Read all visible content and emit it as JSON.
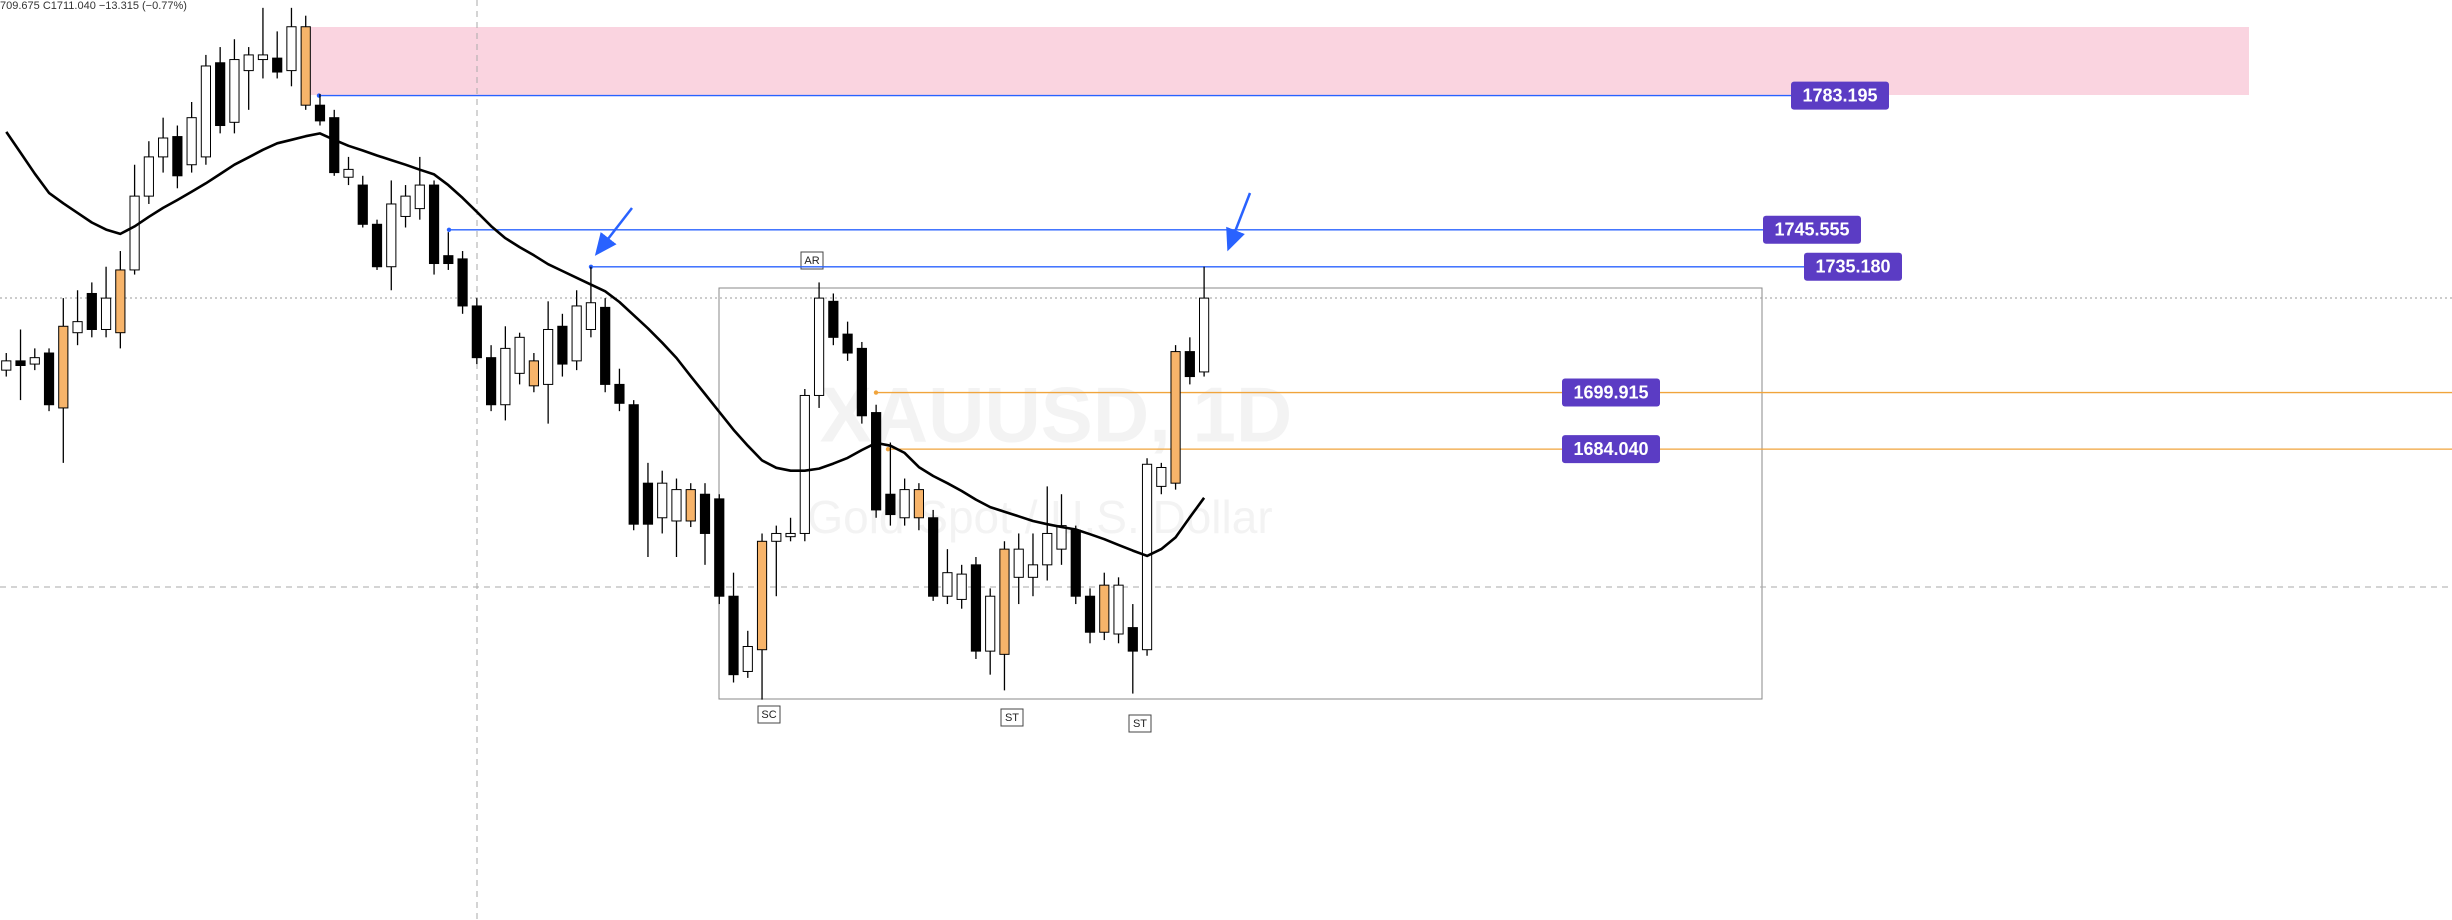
{
  "chart_data": {
    "type": "candlestick",
    "legend_text": "709.675 C1711.040 −13.315 (−0.77%)",
    "watermark": {
      "symbol": "XAUUSD, 1D",
      "description": "Gold Spot / U.S. Dollar"
    },
    "ylim": [
      1552,
      1810
    ],
    "open": [
      1706.2,
      1708.8,
      1707.9,
      1711.0,
      1695.6,
      1716.7,
      1727.7,
      1717.6,
      1716.7,
      1734.3,
      1755.0,
      1766.0,
      1771.7,
      1763.8,
      1766.0,
      1792.4,
      1775.7,
      1790.2,
      1793.3,
      1793.7,
      1790.2,
      1802.5,
      1780.5,
      1777.0,
      1760.3,
      1758.1,
      1747.1,
      1735.2,
      1749.3,
      1751.5,
      1758.1,
      1738.3,
      1737.4,
      1724.2,
      1709.7,
      1696.5,
      1705.3,
      1708.8,
      1702.2,
      1718.5,
      1708.8,
      1717.6,
      1723.8,
      1702.2,
      1696.5,
      1674.5,
      1664.8,
      1663.9,
      1663.9,
      1671.4,
      1670.1,
      1642.8,
      1621.7,
      1627.8,
      1658.2,
      1659.5,
      1660.4,
      1699.1,
      1725.5,
      1716.3,
      1712.3,
      1694.3,
      1671.4,
      1664.8,
      1664.8,
      1664.8,
      1642.8,
      1641.9,
      1651.6,
      1627.4,
      1626.5,
      1648.1,
      1648.1,
      1651.6,
      1656.0,
      1661.3,
      1642.8,
      1632.7,
      1632.2,
      1634.0,
      1627.8,
      1673.6,
      1674.5,
      1711.4,
      1705.7
    ],
    "high": [
      1711.0,
      1717.6,
      1712.3,
      1712.3,
      1726.4,
      1728.6,
      1730.8,
      1735.2,
      1739.6,
      1763.8,
      1770.4,
      1777.0,
      1774.8,
      1781.4,
      1794.6,
      1796.8,
      1799.0,
      1796.8,
      1807.8,
      1801.2,
      1807.8,
      1805.6,
      1783.6,
      1779.2,
      1766.0,
      1760.7,
      1748.4,
      1759.4,
      1758.1,
      1766.0,
      1759.4,
      1744.9,
      1739.6,
      1726.4,
      1713.2,
      1718.5,
      1716.7,
      1711.0,
      1725.5,
      1722.0,
      1728.6,
      1735.2,
      1726.4,
      1706.6,
      1697.8,
      1680.2,
      1678.0,
      1675.8,
      1674.5,
      1674.5,
      1671.4,
      1649.4,
      1633.1,
      1660.4,
      1662.6,
      1664.8,
      1700.9,
      1730.8,
      1727.7,
      1719.8,
      1714.1,
      1696.5,
      1685.9,
      1675.8,
      1674.5,
      1667.0,
      1656.0,
      1651.6,
      1653.8,
      1645.0,
      1658.2,
      1660.4,
      1660.4,
      1673.6,
      1671.4,
      1662.6,
      1645.0,
      1649.4,
      1648.1,
      1640.6,
      1681.5,
      1680.2,
      1713.2,
      1715.4,
      1735.2
    ],
    "low": [
      1704.4,
      1697.8,
      1706.2,
      1694.7,
      1680.2,
      1713.2,
      1715.4,
      1715.4,
      1712.3,
      1733.0,
      1752.8,
      1761.6,
      1757.2,
      1761.6,
      1763.8,
      1772.6,
      1772.6,
      1779.2,
      1788.0,
      1788.0,
      1785.8,
      1779.2,
      1774.8,
      1760.7,
      1758.1,
      1746.2,
      1734.3,
      1728.6,
      1746.2,
      1748.4,
      1733.0,
      1734.3,
      1722.0,
      1707.9,
      1694.7,
      1692.1,
      1702.2,
      1700.0,
      1691.2,
      1704.4,
      1706.2,
      1715.4,
      1700.0,
      1694.7,
      1661.3,
      1653.8,
      1660.4,
      1653.8,
      1662.2,
      1651.6,
      1640.6,
      1618.6,
      1619.9,
      1613.8,
      1642.8,
      1658.2,
      1658.2,
      1695.6,
      1713.2,
      1708.8,
      1691.2,
      1664.8,
      1662.6,
      1662.6,
      1661.3,
      1641.5,
      1640.6,
      1639.3,
      1625.2,
      1620.8,
      1616.4,
      1640.6,
      1642.8,
      1647.2,
      1651.6,
      1640.6,
      1629.6,
      1630.5,
      1629.6,
      1615.5,
      1626.1,
      1671.4,
      1672.7,
      1702.2,
      1704.4
    ],
    "close": [
      1708.8,
      1707.5,
      1709.7,
      1696.5,
      1718.5,
      1719.8,
      1717.6,
      1726.4,
      1734.3,
      1755.0,
      1766.0,
      1771.3,
      1760.7,
      1777.0,
      1791.5,
      1774.8,
      1793.3,
      1794.6,
      1794.6,
      1789.8,
      1802.5,
      1780.5,
      1776.1,
      1761.6,
      1762.5,
      1747.1,
      1735.2,
      1752.8,
      1755.0,
      1758.1,
      1736.1,
      1736.1,
      1724.2,
      1709.7,
      1696.5,
      1712.3,
      1715.4,
      1701.8,
      1717.6,
      1707.9,
      1724.2,
      1725.1,
      1702.2,
      1696.9,
      1663.0,
      1663.0,
      1674.5,
      1672.7,
      1672.7,
      1660.4,
      1642.8,
      1620.8,
      1628.7,
      1658.2,
      1660.4,
      1660.4,
      1699.1,
      1726.4,
      1715.4,
      1711.0,
      1693.4,
      1667.0,
      1665.7,
      1672.7,
      1672.7,
      1642.8,
      1649.4,
      1649.0,
      1627.4,
      1642.8,
      1656.0,
      1656.0,
      1651.6,
      1660.4,
      1662.6,
      1642.8,
      1632.7,
      1645.9,
      1645.9,
      1627.4,
      1679.8,
      1678.9,
      1711.4,
      1704.4,
      1726.4
    ],
    "colors": [
      "#ffffff",
      "#000000",
      "#ffffff",
      "#000000",
      "#f7b46a",
      "#ffffff",
      "#000000",
      "#ffffff",
      "#f7b46a",
      "#ffffff",
      "#ffffff",
      "#ffffff",
      "#000000",
      "#ffffff",
      "#ffffff",
      "#000000",
      "#ffffff",
      "#ffffff",
      "#ffffff",
      "#000000",
      "#ffffff",
      "#f7b46a",
      "#000000",
      "#000000",
      "#ffffff",
      "#000000",
      "#000000",
      "#ffffff",
      "#ffffff",
      "#ffffff",
      "#000000",
      "#000000",
      "#000000",
      "#000000",
      "#000000",
      "#ffffff",
      "#ffffff",
      "#f7b46a",
      "#ffffff",
      "#000000",
      "#ffffff",
      "#ffffff",
      "#000000",
      "#000000",
      "#000000",
      "#000000",
      "#ffffff",
      "#ffffff",
      "#f7b46a",
      "#000000",
      "#000000",
      "#000000",
      "#ffffff",
      "#f7b46a",
      "#ffffff",
      "#ffffff",
      "#ffffff",
      "#ffffff",
      "#000000",
      "#000000",
      "#000000",
      "#000000",
      "#000000",
      "#ffffff",
      "#f7b46a",
      "#000000",
      "#ffffff",
      "#ffffff",
      "#000000",
      "#ffffff",
      "#f7b46a",
      "#ffffff",
      "#ffffff",
      "#ffffff",
      "#ffffff",
      "#000000",
      "#000000",
      "#f7b46a",
      "#ffffff",
      "#000000",
      "#ffffff",
      "#ffffff",
      "#f7b46a",
      "#000000",
      "#ffffff"
    ],
    "moving_average": {
      "color": "#000000",
      "values": [
        1773.0,
        1767.2,
        1761.3,
        1755.9,
        1753.0,
        1750.3,
        1747.6,
        1745.6,
        1744.4,
        1746.5,
        1749.2,
        1751.7,
        1753.9,
        1756.2,
        1758.6,
        1761.2,
        1763.8,
        1765.9,
        1768.0,
        1769.8,
        1770.8,
        1771.8,
        1772.6,
        1770.8,
        1769.1,
        1767.8,
        1766.4,
        1765.1,
        1763.8,
        1762.4,
        1761.1,
        1758.1,
        1754.5,
        1750.6,
        1746.6,
        1743.2,
        1740.7,
        1738.4,
        1735.9,
        1734.0,
        1732.1,
        1730.2,
        1728.3,
        1725.3,
        1721.6,
        1717.9,
        1713.9,
        1709.6,
        1704.5,
        1699.5,
        1694.5,
        1689.5,
        1685.0,
        1680.9,
        1678.8,
        1678.0,
        1678.0,
        1678.6,
        1680.0,
        1681.6,
        1683.8,
        1685.8,
        1685.0,
        1683.0,
        1679.0,
        1676.5,
        1674.5,
        1672.3,
        1669.9,
        1667.8,
        1666.5,
        1665.2,
        1663.9,
        1663.0,
        1662.2,
        1661.5,
        1660.2,
        1658.8,
        1657.2,
        1655.6,
        1654.1,
        1656.0,
        1659.3,
        1664.9,
        1670.4
      ]
    },
    "levels": [
      {
        "value": 1783.195,
        "label": "1783.195",
        "color": "#2962ff"
      },
      {
        "value": 1745.555,
        "label": "1745.555",
        "color": "#2962ff"
      },
      {
        "value": 1735.18,
        "label": "1735.180",
        "color": "#2962ff"
      },
      {
        "value": 1699.915,
        "label": "1699.915",
        "color": "#f0a43c"
      },
      {
        "value": 1684.04,
        "label": "1684.040",
        "color": "#f0a43c"
      }
    ],
    "annotations": [
      "AR",
      "SC",
      "ST",
      "ST"
    ]
  }
}
